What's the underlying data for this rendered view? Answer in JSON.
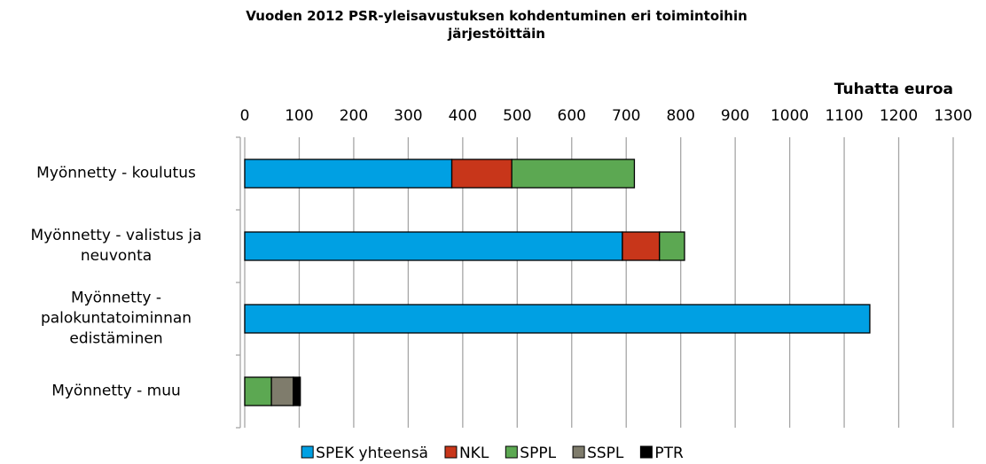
{
  "chart_data": {
    "type": "stacked_barh",
    "title": "Vuoden 2012 PSR-yleisavustuksen kohdentuminen eri toimintoihin järjestöittäin",
    "xlabel": "Tuhatta euroa",
    "categories": [
      "Myönnetty - koulutus",
      "Myönnetty - valistus ja neuvonta",
      "Myönnetty - palokuntatoiminnan edistäminen",
      "Myönnetty - muu"
    ],
    "series": [
      {
        "name": "SPEK yhteensä",
        "color": "#00a0e3",
        "values": [
          380,
          693,
          1147,
          null
        ]
      },
      {
        "name": "NKL",
        "color": "#c8361a",
        "values": [
          110,
          68,
          null,
          null
        ]
      },
      {
        "name": "SPPL",
        "color": "#5ca852",
        "values": [
          225,
          46,
          null,
          49
        ]
      },
      {
        "name": "SSPL",
        "color": "#7f7c6c",
        "values": [
          null,
          null,
          null,
          40
        ]
      },
      {
        "name": "PTR",
        "color": "#000000",
        "values": [
          null,
          null,
          null,
          13
        ]
      }
    ],
    "xlim": [
      0,
      1300
    ],
    "xticks": [
      0,
      100,
      200,
      300,
      400,
      500,
      600,
      700,
      800,
      900,
      1000,
      1100,
      1200,
      1300
    ],
    "grid": true,
    "legend": "bottom"
  }
}
